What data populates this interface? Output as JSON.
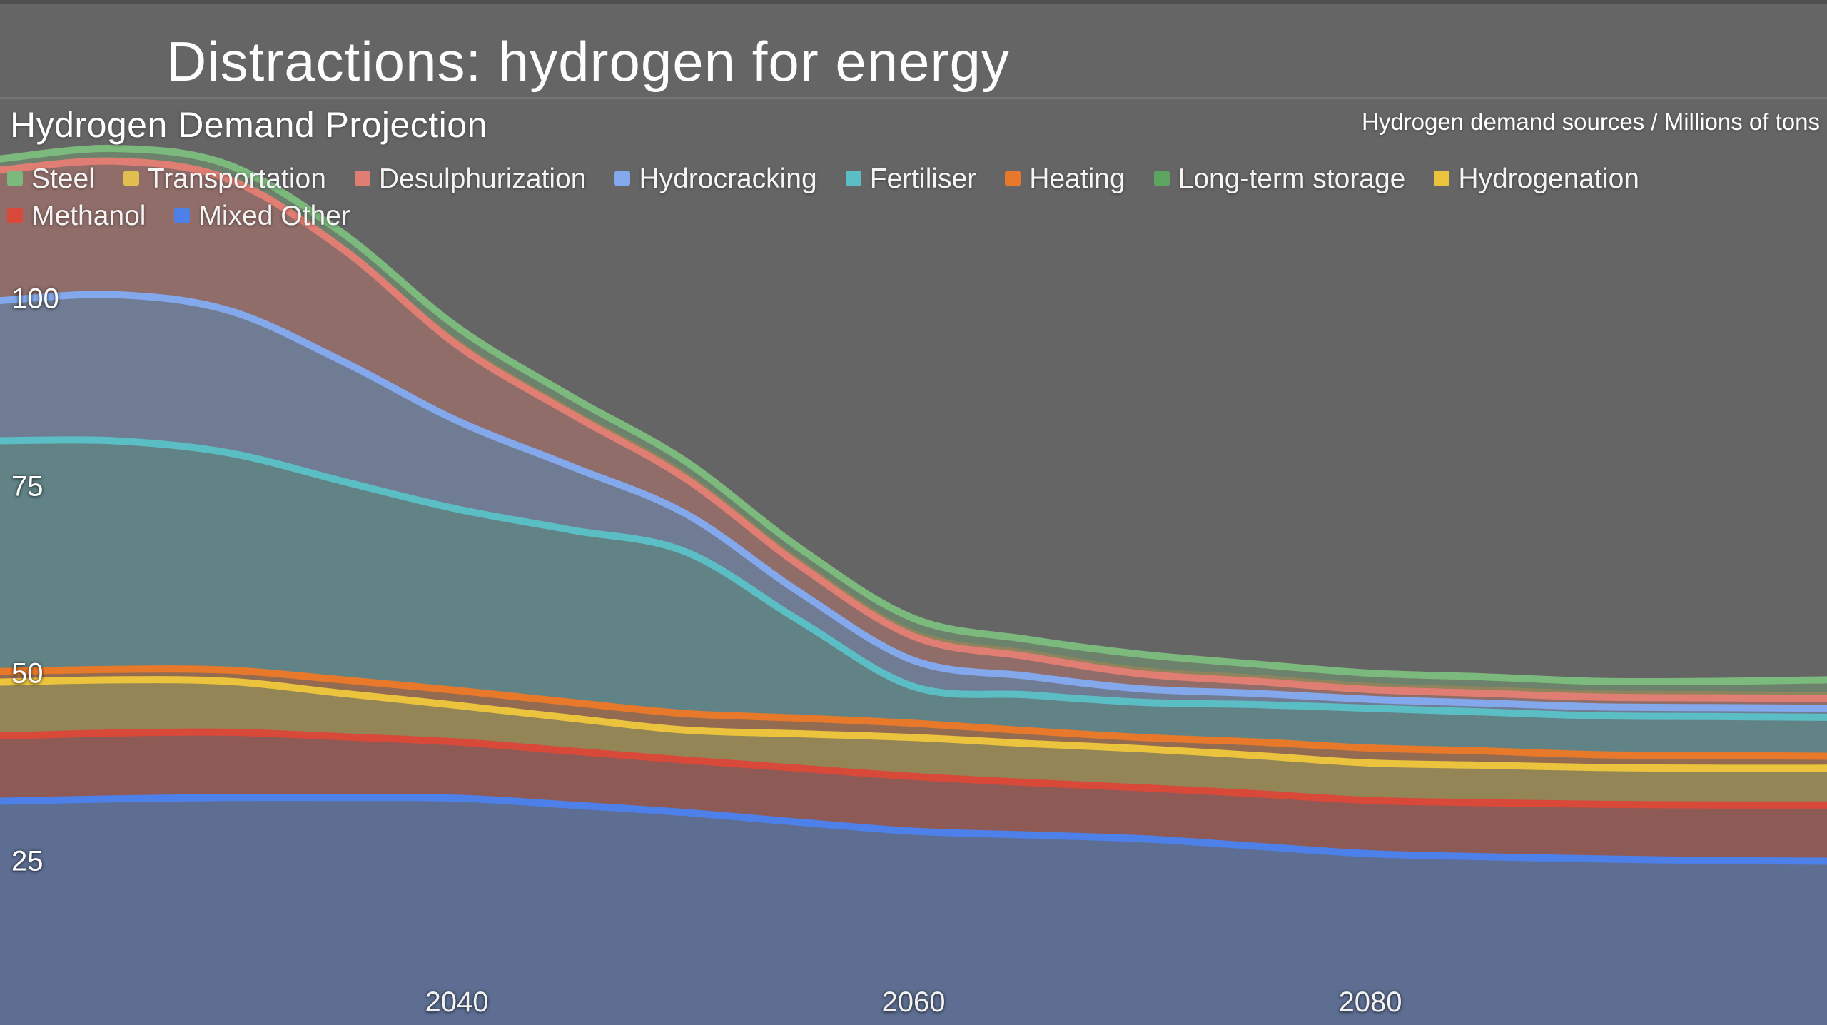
{
  "window": {
    "title": "Distractions: hydrogen for energy"
  },
  "chart": {
    "title": "Hydrogen Demand Projection",
    "units_label": "Hydrogen demand sources / Millions of tons"
  },
  "colors": {
    "background": "#666565",
    "top_strip": "#4f4f4f",
    "separator": "#7b7b7b",
    "label_text": "#ffffff",
    "area_fill_opacity": 0.35
  },
  "chart_data": {
    "type": "area",
    "stacked": true,
    "title": "Hydrogen Demand Projection",
    "subtitle": "Hydrogen demand sources / Millions of tons",
    "grid": false,
    "legend_position": "top-left-two-rows",
    "xlim": [
      2020,
      2100
    ],
    "x": [
      2020,
      2025,
      2030,
      2035,
      2040,
      2045,
      2050,
      2055,
      2060,
      2065,
      2070,
      2075,
      2080,
      2085,
      2090,
      2095,
      2100
    ],
    "x_ticks": [
      2040,
      2060,
      2080
    ],
    "y_ticks": [
      25,
      50,
      75,
      100
    ],
    "stack_note": "series listed in legend order; stacking is bottom-to-top in reverse of this list (Mixed Other at bottom, Steel on top)",
    "series": [
      {
        "name": "Steel",
        "color": "#7cb97d",
        "row": 1,
        "line": true,
        "values": [
          1.1,
          1.3,
          1.4,
          1.5,
          1.6,
          1.5,
          1.4,
          1.4,
          1.5,
          1.4,
          1.7,
          1.4,
          1.3,
          1.3,
          1.2,
          1.3,
          1.6
        ]
      },
      {
        "name": "Transportation",
        "color": "#e0bf4e",
        "row": 1,
        "line": false,
        "values": [
          0.4,
          0.4,
          0.5,
          0.6,
          0.8,
          0.8,
          0.9,
          0.9,
          0.9,
          0.9,
          0.9,
          0.9,
          0.9,
          0.9,
          0.9,
          0.9,
          0.9
        ]
      },
      {
        "name": "Desulphurization",
        "color": "#e07e73",
        "row": 1,
        "line": true,
        "values": [
          17.4,
          17.8,
          17.5,
          15.0,
          10.1,
          7.0,
          4.7,
          3.6,
          3.2,
          2.6,
          2.0,
          1.6,
          1.3,
          1.3,
          1.3,
          1.3,
          1.3
        ]
      },
      {
        "name": "Hydrocracking",
        "color": "#83a8ec",
        "row": 1,
        "line": true,
        "values": [
          18.7,
          19.5,
          19.0,
          16.0,
          11.8,
          8.5,
          5.1,
          3.8,
          3.5,
          2.5,
          1.8,
          1.5,
          1.2,
          1.2,
          1.2,
          1.2,
          1.2
        ]
      },
      {
        "name": "Fertiliser",
        "color": "#5bbec5",
        "row": 1,
        "line": true,
        "values": [
          30.8,
          30.5,
          29.0,
          26.5,
          24.2,
          23.0,
          21.6,
          13.0,
          4.9,
          4.8,
          4.7,
          5.0,
          5.3,
          5.2,
          5.2,
          5.2,
          5.2
        ]
      },
      {
        "name": "Heating",
        "color": "#e8782a",
        "row": 1,
        "line": true,
        "values": [
          1.2,
          1.2,
          1.3,
          1.6,
          1.8,
          1.9,
          2.0,
          1.9,
          1.7,
          1.5,
          1.3,
          1.6,
          1.8,
          1.7,
          1.5,
          1.5,
          1.4
        ]
      },
      {
        "name": "Long-term storage",
        "color": "#5ba55f",
        "row": 1,
        "line": false,
        "values": [
          0.2,
          0.2,
          0.2,
          0.2,
          0.2,
          0.2,
          0.2,
          0.2,
          0.2,
          0.2,
          0.2,
          0.2,
          0.2,
          0.2,
          0.2,
          0.2,
          0.2
        ]
      },
      {
        "name": "Hydrogenation",
        "color": "#ecc33c",
        "row": 1,
        "line": true,
        "values": [
          7.2,
          7.1,
          6.8,
          5.8,
          4.9,
          4.4,
          4.0,
          4.6,
          5.2,
          5.2,
          5.2,
          5.1,
          5.0,
          5.0,
          4.9,
          4.9,
          4.9
        ]
      },
      {
        "name": "Methanol",
        "color": "#d9493a",
        "row": 2,
        "line": true,
        "values": [
          8.7,
          8.8,
          8.7,
          8.1,
          7.5,
          7.2,
          7.0,
          7.2,
          7.3,
          7.0,
          6.8,
          7.0,
          7.1,
          7.2,
          7.3,
          7.4,
          7.5
        ]
      },
      {
        "name": "Mixed Other",
        "color": "#4d80e8",
        "row": 2,
        "line": true,
        "values": [
          33.0,
          33.3,
          33.5,
          33.5,
          33.4,
          32.5,
          31.5,
          30.2,
          29.0,
          28.5,
          28.0,
          27.0,
          26.0,
          25.6,
          25.3,
          25.1,
          25.0
        ]
      }
    ]
  }
}
